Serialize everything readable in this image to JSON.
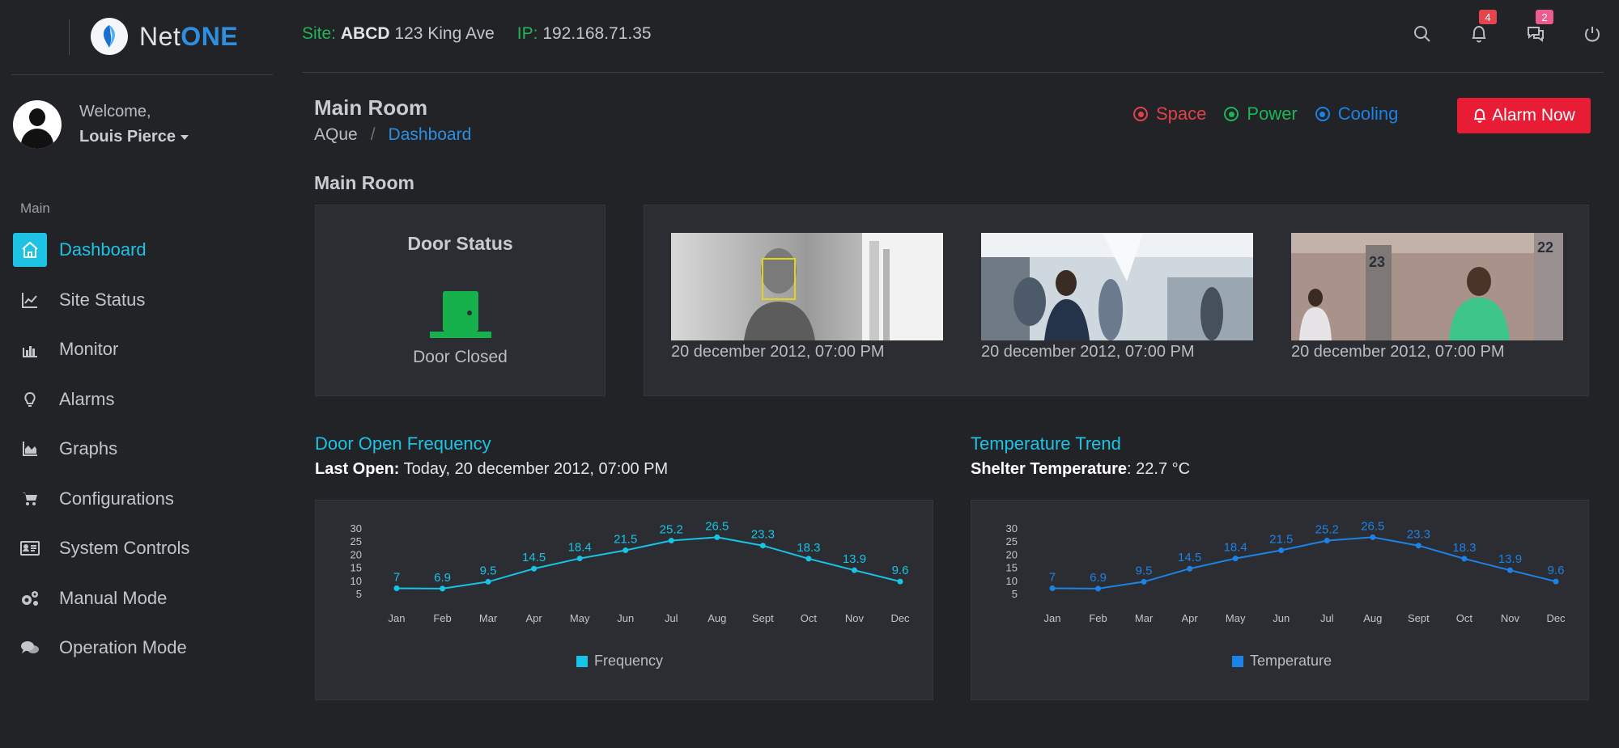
{
  "brand": {
    "net": "Net",
    "one": "ONE"
  },
  "user": {
    "welcome": "Welcome,",
    "name": "Louis Pierce"
  },
  "sidebar": {
    "section": "Main",
    "items": [
      {
        "label": "Dashboard",
        "icon": "home-icon",
        "active": true
      },
      {
        "label": "Site Status",
        "icon": "line-chart-icon"
      },
      {
        "label": "Monitor",
        "icon": "bar-chart-icon"
      },
      {
        "label": "Alarms",
        "icon": "lightbulb-icon"
      },
      {
        "label": "Graphs",
        "icon": "area-chart-icon"
      },
      {
        "label": "Configurations",
        "icon": "cart-icon"
      },
      {
        "label": "System Controls",
        "icon": "id-card-icon"
      },
      {
        "label": "Manual Mode",
        "icon": "gears-icon"
      },
      {
        "label": "Operation Mode",
        "icon": "comments-icon"
      }
    ]
  },
  "topbar": {
    "site_label": "Site:",
    "site_code": "ABCD",
    "site_address": "123 King Ave",
    "ip_label": "IP:",
    "ip_value": "192.168.71.35",
    "notifications_count": "4",
    "messages_count": "2"
  },
  "page": {
    "title": "Main Room",
    "breadcrumb_home": "AQue",
    "breadcrumb_sep": "/",
    "breadcrumb_current": "Dashboard",
    "section_title": "Main Room"
  },
  "status_legend": [
    {
      "label": "Space",
      "color": "#e0424b"
    },
    {
      "label": "Power",
      "color": "#1fb45a"
    },
    {
      "label": "Cooling",
      "color": "#1d82e6"
    }
  ],
  "alarm_button": "Alarm Now",
  "door": {
    "title": "Door Status",
    "status": "Door Closed",
    "color": "#16b14c"
  },
  "cameras": [
    {
      "timestamp": "20 december 2012, 07:00 PM"
    },
    {
      "timestamp": "20 december 2012, 07:00 PM"
    },
    {
      "timestamp": "20 december 2012, 07:00 PM"
    }
  ],
  "door_chart": {
    "title": "Door Open Frequency",
    "sub_label": "Last Open:",
    "sub_value": " Today, 20 december 2012, 07:00 PM"
  },
  "temp_chart": {
    "title": "Temperature Trend",
    "sub_label": "Shelter Temperature",
    "sub_value": ": 22.7 °C"
  },
  "chart_data": [
    {
      "type": "line",
      "categories": [
        "Jan",
        "Feb",
        "Mar",
        "Apr",
        "May",
        "Jun",
        "Jul",
        "Aug",
        "Sept",
        "Oct",
        "Nov",
        "Dec"
      ],
      "series": [
        {
          "name": "Frequency",
          "values": [
            7,
            6.9,
            9.5,
            14.5,
            18.4,
            21.5,
            25.2,
            26.5,
            23.3,
            18.3,
            13.9,
            9.6
          ],
          "color": "#16c4e5"
        }
      ],
      "yticks": [
        5,
        10,
        15,
        20,
        25,
        30
      ],
      "ylim": [
        5,
        30
      ],
      "legend": "bottom-center"
    },
    {
      "type": "line",
      "categories": [
        "Jan",
        "Feb",
        "Mar",
        "Apr",
        "May",
        "Jun",
        "Jul",
        "Aug",
        "Sept",
        "Oct",
        "Nov",
        "Dec"
      ],
      "series": [
        {
          "name": "Temperature",
          "values": [
            7,
            6.9,
            9.5,
            14.5,
            18.4,
            21.5,
            25.2,
            26.5,
            23.3,
            18.3,
            13.9,
            9.6
          ],
          "color": "#1d82e6"
        }
      ],
      "yticks": [
        5,
        10,
        15,
        20,
        25,
        30
      ],
      "ylim": [
        5,
        30
      ],
      "legend": "bottom-center"
    }
  ]
}
